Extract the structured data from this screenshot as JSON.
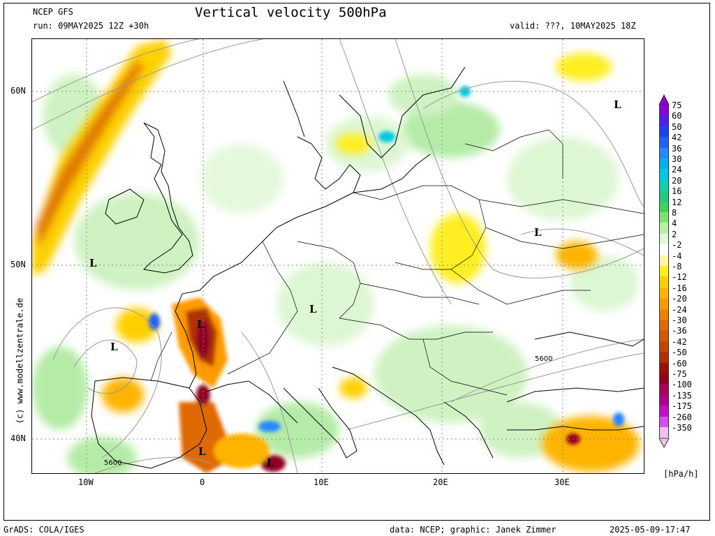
{
  "header": {
    "model": "NCEP GFS",
    "run": "run: 09MAY2025 12Z +30h",
    "title": "Vertical velocity 500hPa",
    "valid": "valid: ???, 10MAY2025 18Z"
  },
  "axes": {
    "lat_labels": [
      "60N",
      "50N",
      "40N"
    ],
    "lon_labels": [
      "10W",
      "0",
      "10E",
      "20E",
      "30E"
    ]
  },
  "legend": {
    "unit": "[hPa/h]",
    "levels": [
      "75",
      "60",
      "50",
      "42",
      "36",
      "30",
      "24",
      "20",
      "16",
      "12",
      "8",
      "4",
      "2",
      "-2",
      "-4",
      "-8",
      "-12",
      "-16",
      "-20",
      "-24",
      "-30",
      "-36",
      "-42",
      "-50",
      "-60",
      "-75",
      "-100",
      "-135",
      "-175",
      "-260",
      "-350"
    ],
    "colors": [
      "#8a00d6",
      "#4a20e8",
      "#2040f0",
      "#2060f8",
      "#2888ff",
      "#00b0f0",
      "#00c8e0",
      "#10d0b0",
      "#20c880",
      "#40d060",
      "#80e070",
      "#b8f0a8",
      "#e0f8d8",
      "#ffffff",
      "#fff8a0",
      "#ffee20",
      "#ffd000",
      "#ffb400",
      "#ff9a00",
      "#f08000",
      "#e06800",
      "#d05a00",
      "#c04800",
      "#b03000",
      "#a01000",
      "#900020",
      "#a80058",
      "#b00090",
      "#c010c8",
      "#d050e8",
      "#f0c0f0"
    ]
  },
  "map": {
    "contour_labels": [
      "5600",
      "5600"
    ],
    "low_markers": [
      "L",
      "L",
      "L",
      "L",
      "L",
      "L",
      "L",
      "L"
    ]
  },
  "watermark": "(c) www.modellzentrale.de",
  "footer": {
    "left": "GrADS: COLA/IGES",
    "credit": "data: NCEP; graphic: Janek Zimmer",
    "timestamp": "2025-05-09-17:47"
  }
}
